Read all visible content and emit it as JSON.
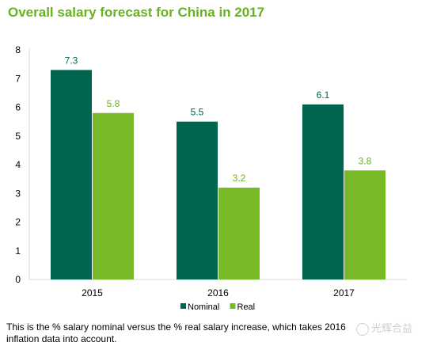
{
  "chart_data": {
    "type": "bar",
    "title": "Overall salary forecast for China in 2017",
    "categories": [
      "2015",
      "2016",
      "2017"
    ],
    "series": [
      {
        "name": "Nominal",
        "values": [
          7.3,
          5.5,
          6.1
        ],
        "color": "#006450",
        "label_color": "#006450"
      },
      {
        "name": "Real",
        "values": [
          5.8,
          3.2,
          3.8
        ],
        "color": "#78b928",
        "label_color": "#6ab023"
      }
    ],
    "ylim": [
      0,
      8
    ],
    "yticks": [
      "0",
      "1",
      "2",
      "3",
      "4",
      "5",
      "6",
      "7",
      "8"
    ],
    "data_labels": [
      [
        "7.3",
        "5.5",
        "6.1"
      ],
      [
        "5.8",
        "3.2",
        "3.8"
      ]
    ],
    "xlabel": "",
    "ylabel": "",
    "grid": false,
    "legend": "bottom-center"
  },
  "caption": "This is the % salary nominal versus the % real salary increase, which takes 2016 inflation data into account.",
  "watermark": "光辉合益",
  "colors": {
    "title": "#6ab023",
    "axis": "#d9d9d9",
    "tick_text": "#000000"
  }
}
